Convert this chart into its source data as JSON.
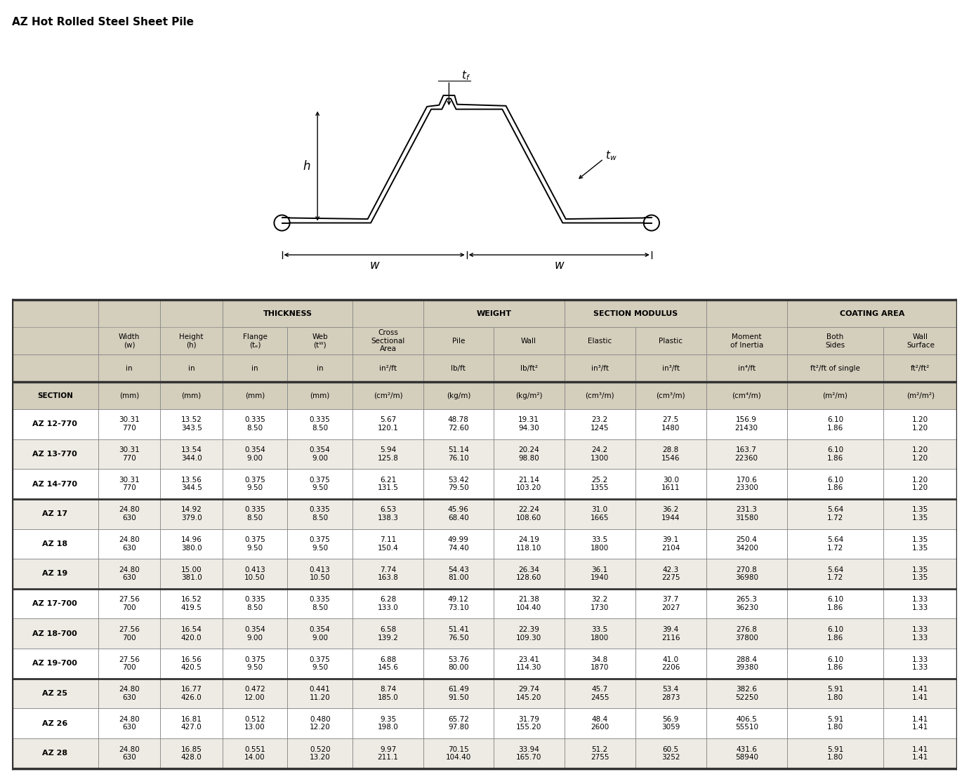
{
  "title": "AZ Hot Rolled Steel Sheet Pile",
  "bg_color": "#FFFFFF",
  "header_bg": "#D4CEBC",
  "sections": [
    "AZ 12-770",
    "AZ 13-770",
    "AZ 14-770",
    "AZ 17",
    "AZ 18",
    "AZ 19",
    "AZ 17-700",
    "AZ 18-700",
    "AZ 19-700",
    "AZ 25",
    "AZ 26",
    "AZ 28"
  ],
  "data": [
    [
      "30.31",
      "770",
      "13.52",
      "343.5",
      "0.335",
      "8.50",
      "0.335",
      "8.50",
      "5.67",
      "120.1",
      "48.78",
      "72.60",
      "19.31",
      "94.30",
      "23.2",
      "1245",
      "27.5",
      "1480",
      "156.9",
      "21430",
      "6.10",
      "1.86",
      "1.20",
      "1.20"
    ],
    [
      "30.31",
      "770",
      "13.54",
      "344.0",
      "0.354",
      "9.00",
      "0.354",
      "9.00",
      "5.94",
      "125.8",
      "51.14",
      "76.10",
      "20.24",
      "98.80",
      "24.2",
      "1300",
      "28.8",
      "1546",
      "163.7",
      "22360",
      "6.10",
      "1.86",
      "1.20",
      "1.20"
    ],
    [
      "30.31",
      "770",
      "13.56",
      "344.5",
      "0.375",
      "9.50",
      "0.375",
      "9.50",
      "6.21",
      "131.5",
      "53.42",
      "79.50",
      "21.14",
      "103.20",
      "25.2",
      "1355",
      "30.0",
      "1611",
      "170.6",
      "23300",
      "6.10",
      "1.86",
      "1.20",
      "1.20"
    ],
    [
      "24.80",
      "630",
      "14.92",
      "379.0",
      "0.335",
      "8.50",
      "0.335",
      "8.50",
      "6.53",
      "138.3",
      "45.96",
      "68.40",
      "22.24",
      "108.60",
      "31.0",
      "1665",
      "36.2",
      "1944",
      "231.3",
      "31580",
      "5.64",
      "1.72",
      "1.35",
      "1.35"
    ],
    [
      "24.80",
      "630",
      "14.96",
      "380.0",
      "0.375",
      "9.50",
      "0.375",
      "9.50",
      "7.11",
      "150.4",
      "49.99",
      "74.40",
      "24.19",
      "118.10",
      "33.5",
      "1800",
      "39.1",
      "2104",
      "250.4",
      "34200",
      "5.64",
      "1.72",
      "1.35",
      "1.35"
    ],
    [
      "24.80",
      "630",
      "15.00",
      "381.0",
      "0.413",
      "10.50",
      "0.413",
      "10.50",
      "7.74",
      "163.8",
      "54.43",
      "81.00",
      "26.34",
      "128.60",
      "36.1",
      "1940",
      "42.3",
      "2275",
      "270.8",
      "36980",
      "5.64",
      "1.72",
      "1.35",
      "1.35"
    ],
    [
      "27.56",
      "700",
      "16.52",
      "419.5",
      "0.335",
      "8.50",
      "0.335",
      "8.50",
      "6.28",
      "133.0",
      "49.12",
      "73.10",
      "21.38",
      "104.40",
      "32.2",
      "1730",
      "37.7",
      "2027",
      "265.3",
      "36230",
      "6.10",
      "1.86",
      "1.33",
      "1.33"
    ],
    [
      "27.56",
      "700",
      "16.54",
      "420.0",
      "0.354",
      "9.00",
      "0.354",
      "9.00",
      "6.58",
      "139.2",
      "51.41",
      "76.50",
      "22.39",
      "109.30",
      "33.5",
      "1800",
      "39.4",
      "2116",
      "276.8",
      "37800",
      "6.10",
      "1.86",
      "1.33",
      "1.33"
    ],
    [
      "27.56",
      "700",
      "16.56",
      "420.5",
      "0.375",
      "9.50",
      "0.375",
      "9.50",
      "6.88",
      "145.6",
      "53.76",
      "80.00",
      "23.41",
      "114.30",
      "34.8",
      "1870",
      "41.0",
      "2206",
      "288.4",
      "39380",
      "6.10",
      "1.86",
      "1.33",
      "1.33"
    ],
    [
      "24.80",
      "630",
      "16.77",
      "426.0",
      "0.472",
      "12.00",
      "0.441",
      "11.20",
      "8.74",
      "185.0",
      "61.49",
      "91.50",
      "29.74",
      "145.20",
      "45.7",
      "2455",
      "53.4",
      "2873",
      "382.6",
      "52250",
      "5.91",
      "1.80",
      "1.41",
      "1.41"
    ],
    [
      "24.80",
      "630",
      "16.81",
      "427.0",
      "0.512",
      "13.00",
      "0.480",
      "12.20",
      "9.35",
      "198.0",
      "65.72",
      "97.80",
      "31.79",
      "155.20",
      "48.4",
      "2600",
      "56.9",
      "3059",
      "406.5",
      "55510",
      "5.91",
      "1.80",
      "1.41",
      "1.41"
    ],
    [
      "24.80",
      "630",
      "16.85",
      "428.0",
      "0.551",
      "14.00",
      "0.520",
      "13.20",
      "9.97",
      "211.1",
      "70.15",
      "104.40",
      "33.94",
      "165.70",
      "51.2",
      "2755",
      "60.5",
      "3252",
      "431.6",
      "58940",
      "5.91",
      "1.80",
      "1.41",
      "1.41"
    ]
  ],
  "thick_sep_after": [
    2,
    5,
    8
  ]
}
